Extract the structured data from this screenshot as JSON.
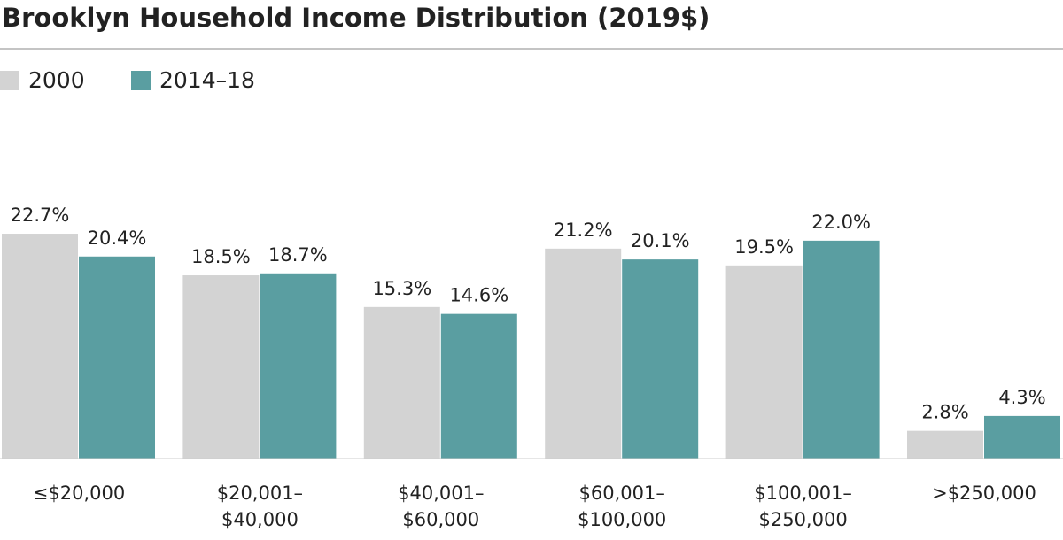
{
  "chart_data": {
    "type": "bar",
    "title": "Brooklyn Household Income Distribution (2019$)",
    "categories": [
      [
        "≤$20,000"
      ],
      [
        "$20,001–",
        "$40,000"
      ],
      [
        "$40,001–",
        "$60,000"
      ],
      [
        "$60,001–",
        "$100,000"
      ],
      [
        "$100,001–",
        "$250,000"
      ],
      [
        ">$250,000"
      ]
    ],
    "series": [
      {
        "name": "2000",
        "color": "#d3d3d3",
        "values": [
          22.7,
          18.5,
          15.3,
          21.2,
          19.5,
          2.8
        ],
        "value_labels": [
          "22.7%",
          "18.5%",
          "15.3%",
          "21.2%",
          "19.5%",
          "2.8%"
        ]
      },
      {
        "name": "2014–18",
        "color": "#5a9ea1",
        "values": [
          20.4,
          18.7,
          14.6,
          20.1,
          22.0,
          4.3
        ],
        "value_labels": [
          "20.4%",
          "18.7%",
          "14.6%",
          "20.1%",
          "22.0%",
          "4.3%"
        ]
      }
    ],
    "ylim": [
      0,
      32
    ]
  }
}
